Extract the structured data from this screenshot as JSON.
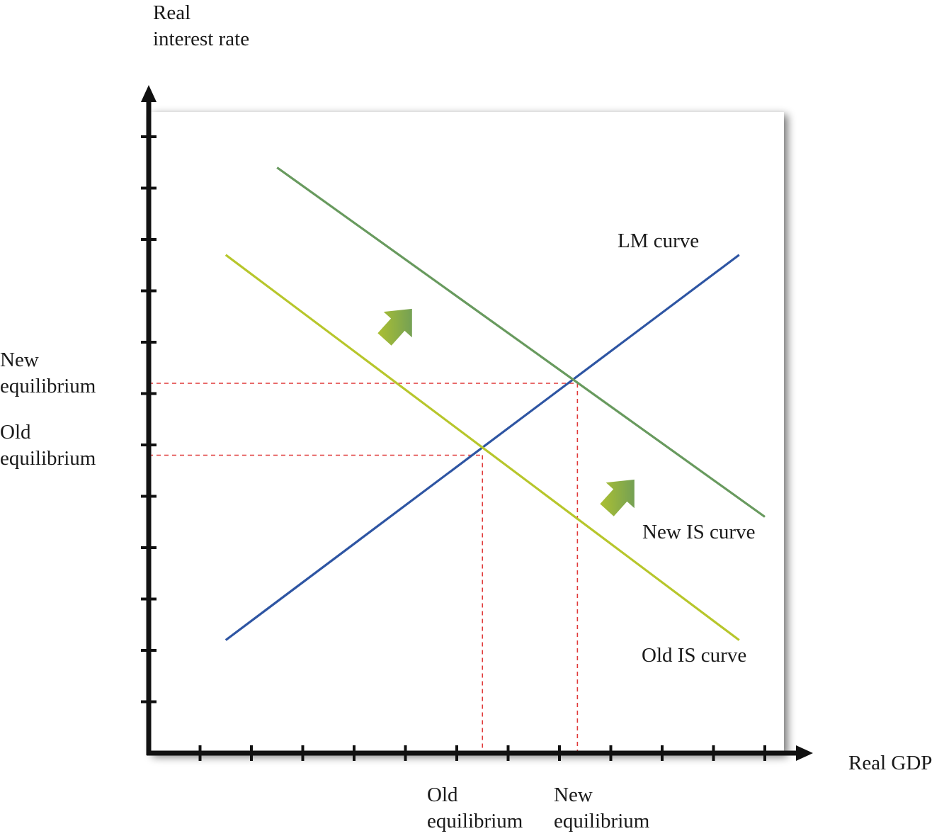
{
  "chart_data": {
    "type": "line",
    "title": "",
    "xlabel": "Real GDP",
    "ylabel": "Real\ninterest rate",
    "xlim": [
      0,
      12
    ],
    "ylim": [
      0,
      12
    ],
    "grid": false,
    "series": [
      {
        "name": "LM curve",
        "color": "#2e55a3",
        "points": [
          [
            1.5,
            2.2
          ],
          [
            11.5,
            9.7
          ]
        ]
      },
      {
        "name": "Old IS curve",
        "color": "#b7c62b",
        "points": [
          [
            1.5,
            9.7
          ],
          [
            11.5,
            2.2
          ]
        ]
      },
      {
        "name": "New IS curve",
        "color": "#689a5e",
        "points": [
          [
            2.5,
            11.4
          ],
          [
            12.0,
            4.6
          ]
        ]
      }
    ],
    "equilibria": [
      {
        "label": "Old\nequilibrium",
        "x": 6.5,
        "y": 5.8
      },
      {
        "label": "New\nequilibrium",
        "x": 8.35,
        "y": 7.2
      }
    ],
    "shift_arrows": {
      "direction": "up-right",
      "color_from": "#b7c62b",
      "color_to": "#5e9462",
      "count": 2
    },
    "guide_color": "#e03a3a"
  }
}
